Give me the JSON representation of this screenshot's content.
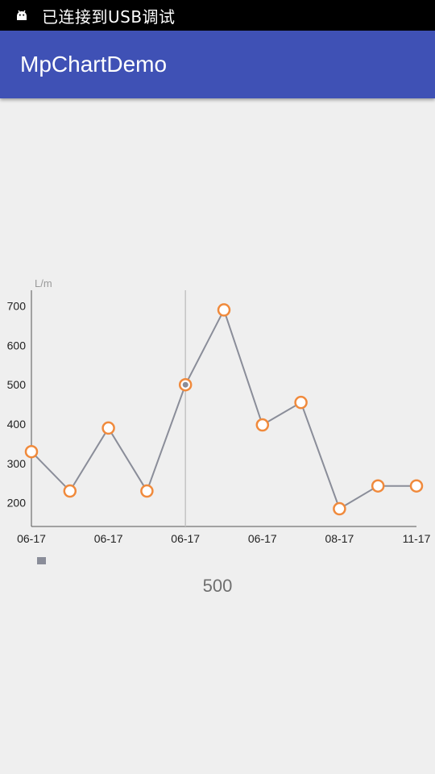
{
  "status_bar": {
    "text": "已连接到USB调试",
    "icon": "android-icon"
  },
  "app_bar": {
    "title": "MpChartDemo",
    "color": "#3f51b5"
  },
  "chart_data": {
    "type": "line",
    "ylabel": "L/m",
    "ylim": [
      140,
      740
    ],
    "yticks": [
      200,
      300,
      400,
      500,
      600,
      700
    ],
    "x_tick_labels": [
      "06-17",
      "06-17",
      "06-17",
      "06-17",
      "08-17",
      "11-17"
    ],
    "series": [
      {
        "name": "",
        "color": "#8a8d99",
        "marker_color": "#f08a3c",
        "values": [
          330,
          230,
          390,
          230,
          500,
          690,
          398,
          455,
          185,
          243,
          243
        ]
      }
    ],
    "highlight_index": 4,
    "grid": false,
    "legend": "bottom-left"
  },
  "readout": {
    "value": "500"
  }
}
